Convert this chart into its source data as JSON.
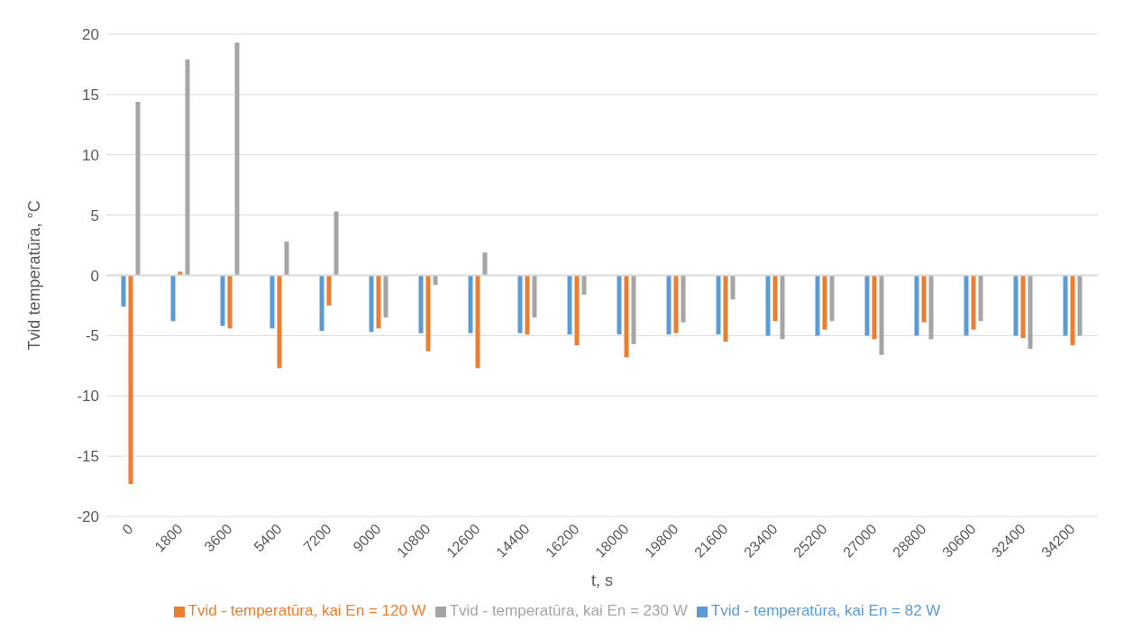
{
  "chart_data": {
    "type": "bar",
    "xlabel": "t, s",
    "ylabel": "Tvid temperatūra, °C",
    "categories": [
      "0",
      "1800",
      "3600",
      "5400",
      "7200",
      "9000",
      "10800",
      "12600",
      "14400",
      "16200",
      "18000",
      "19800",
      "21600",
      "23400",
      "25200",
      "27000",
      "28800",
      "30600",
      "32400",
      "34200"
    ],
    "series": [
      {
        "name": "Tvid - temperatūra, kai En = 82 W",
        "color": "#5b9bd5",
        "values": [
          -2.6,
          -3.8,
          -4.2,
          -4.4,
          -4.6,
          -4.7,
          -4.8,
          -4.8,
          -4.8,
          -4.9,
          -4.9,
          -4.9,
          -4.9,
          -5.0,
          -5.0,
          -5.0,
          -5.0,
          -5.0,
          -5.0,
          -5.0
        ]
      },
      {
        "name": "Tvid - temperatūra, kai En = 120 W",
        "color": "#ed7d31",
        "values": [
          -17.3,
          0.3,
          -4.4,
          -7.7,
          -2.5,
          -4.4,
          -6.3,
          -7.7,
          -4.9,
          -5.8,
          -6.8,
          -4.8,
          -5.5,
          -3.8,
          -4.5,
          -5.3,
          -3.9,
          -4.5,
          -5.2,
          -5.8
        ]
      },
      {
        "name": "Tvid - temperatūra, kai En = 230 W",
        "color": "#a5a5a5",
        "values": [
          14.4,
          17.9,
          19.3,
          2.8,
          5.3,
          -3.5,
          -0.8,
          1.9,
          -3.5,
          -1.6,
          -5.7,
          -3.9,
          -2.0,
          -5.3,
          -3.8,
          -6.6,
          -5.3,
          -3.8,
          -6.1,
          -5.0
        ]
      }
    ],
    "ylim": [
      -20,
      20
    ],
    "yticks": [
      -20,
      -15,
      -10,
      -5,
      0,
      5,
      10,
      15,
      20
    ],
    "grid": "y",
    "legend": "bottom"
  }
}
